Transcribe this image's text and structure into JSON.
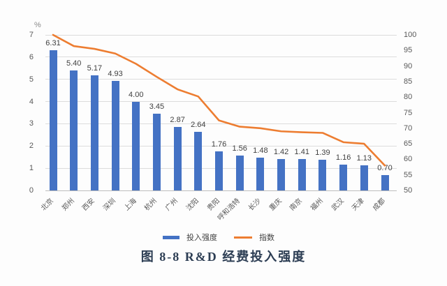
{
  "page": {
    "caption": "图 8-8 R&D 经费投入强度"
  },
  "chart_data": {
    "type": "bar",
    "subtype": "bar-and-line-combo",
    "title": "图 8-8 R&D 经费投入强度",
    "categories": [
      "北京",
      "郑州",
      "西安",
      "深圳",
      "上海",
      "杭州",
      "广州",
      "沈阳",
      "贵阳",
      "呼和浩特",
      "长沙",
      "重庆",
      "南京",
      "福州",
      "武汉",
      "天津",
      "成都"
    ],
    "series": [
      {
        "name": "投入强度",
        "type": "bar",
        "axis": "left",
        "color": "#4472C4",
        "values": [
          6.31,
          5.4,
          5.17,
          4.93,
          4.0,
          3.45,
          2.87,
          2.64,
          1.76,
          1.56,
          1.48,
          1.42,
          1.41,
          1.39,
          1.16,
          1.13,
          0.7
        ]
      },
      {
        "name": "指数",
        "type": "line",
        "axis": "right",
        "color": "#ED7D31",
        "values": [
          100,
          96.4,
          95.5,
          94,
          90.7,
          86.5,
          82.5,
          80.2,
          72.5,
          70.5,
          70,
          69,
          68.7,
          68.5,
          65.5,
          65,
          58
        ]
      }
    ],
    "left_axis": {
      "label": "%",
      "min": 0,
      "max": 7,
      "step": 1,
      "ticks": [
        0,
        1,
        2,
        3,
        4,
        5,
        6,
        7
      ]
    },
    "right_axis": {
      "label": "",
      "min": 50,
      "max": 100,
      "step": 5,
      "ticks": [
        50,
        55,
        60,
        65,
        70,
        75,
        80,
        85,
        90,
        95,
        100
      ]
    },
    "grid": true,
    "legend": [
      "投入强度",
      "指数"
    ],
    "legend_position": "bottom",
    "value_label_decimals": 2,
    "colors": {
      "grid": "#dcdcdc",
      "axis_text": "#595959",
      "value_label": "#3f3f3f"
    }
  }
}
